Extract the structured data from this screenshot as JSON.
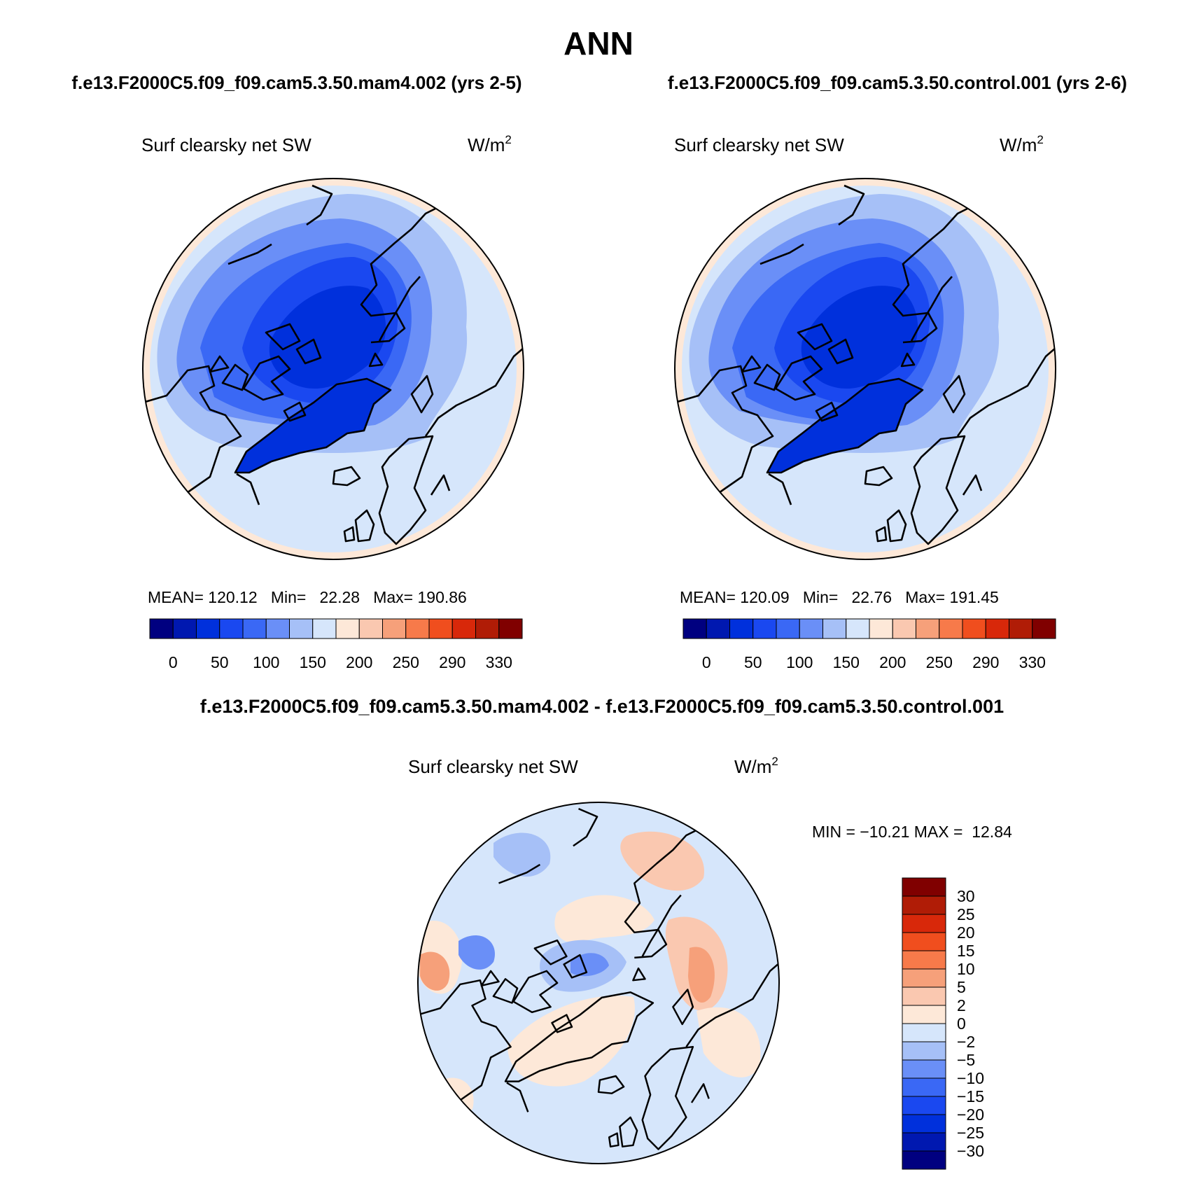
{
  "page": {
    "title": "ANN",
    "subtitle_left": "f.e13.F2000C5.f09_f09.cam5.3.50.mam4.002 (yrs 2-5)",
    "subtitle_right": "f.e13.F2000C5.f09_f09.cam5.3.50.control.001 (yrs 2-6)",
    "diff_title": "f.e13.F2000C5.f09_f09.cam5.3.50.mam4.002 - f.e13.F2000C5.f09_f09.cam5.3.50.control.001"
  },
  "chart_data": [
    {
      "type": "heatmap",
      "projection": "north polar stereographic",
      "variable_label": "Surf clearsky net SW",
      "units": "W/m",
      "units_sup": "2",
      "stats": {
        "mean": "120.12",
        "min": "22.28",
        "max": "190.86"
      },
      "stats_text": {
        "mean_label": "MEAN=",
        "min_label": "Min=",
        "max_label": "Max="
      },
      "colorbar": {
        "orientation": "horizontal",
        "labels": [
          "0",
          "50",
          "100",
          "150",
          "200",
          "250",
          "290",
          "330"
        ],
        "colors": [
          "#000080",
          "#0018b0",
          "#0030dc",
          "#1a48f0",
          "#3a68f5",
          "#6a8ff7",
          "#a6c0f7",
          "#d6e6fb",
          "#fde8d8",
          "#fac8b0",
          "#f6a07a",
          "#f77a4a",
          "#f04e1e",
          "#d8280a",
          "#b01c06",
          "#800000"
        ]
      }
    },
    {
      "type": "heatmap",
      "projection": "north polar stereographic",
      "variable_label": "Surf clearsky net SW",
      "units": "W/m",
      "units_sup": "2",
      "stats": {
        "mean": "120.09",
        "min": "22.76",
        "max": "191.45"
      },
      "stats_text": {
        "mean_label": "MEAN=",
        "min_label": "Min=",
        "max_label": "Max="
      },
      "colorbar": {
        "orientation": "horizontal",
        "labels": [
          "0",
          "50",
          "100",
          "150",
          "200",
          "250",
          "290",
          "330"
        ],
        "colors": [
          "#000080",
          "#0018b0",
          "#0030dc",
          "#1a48f0",
          "#3a68f5",
          "#6a8ff7",
          "#a6c0f7",
          "#d6e6fb",
          "#fde8d8",
          "#fac8b0",
          "#f6a07a",
          "#f77a4a",
          "#f04e1e",
          "#d8280a",
          "#b01c06",
          "#800000"
        ]
      }
    },
    {
      "type": "heatmap",
      "projection": "north polar stereographic",
      "variable_label": "Surf clearsky net SW",
      "units": "W/m",
      "units_sup": "2",
      "stats": {
        "min": "−10.21",
        "max": "12.84"
      },
      "stats_text": {
        "min_label": "MIN =",
        "max_label": "MAX ="
      },
      "colorbar": {
        "orientation": "vertical",
        "labels": [
          "30",
          "25",
          "20",
          "15",
          "10",
          "5",
          "2",
          "0",
          "−2",
          "−5",
          "−10",
          "−15",
          "−20",
          "−25",
          "−30"
        ],
        "colors": [
          "#800000",
          "#b01c06",
          "#d8280a",
          "#f04e1e",
          "#f77a4a",
          "#f6a07a",
          "#fac8b0",
          "#fde8d8",
          "#d6e6fb",
          "#a6c0f7",
          "#6a8ff7",
          "#3a68f5",
          "#1a48f0",
          "#0030dc",
          "#0018b0",
          "#000080"
        ]
      }
    }
  ]
}
